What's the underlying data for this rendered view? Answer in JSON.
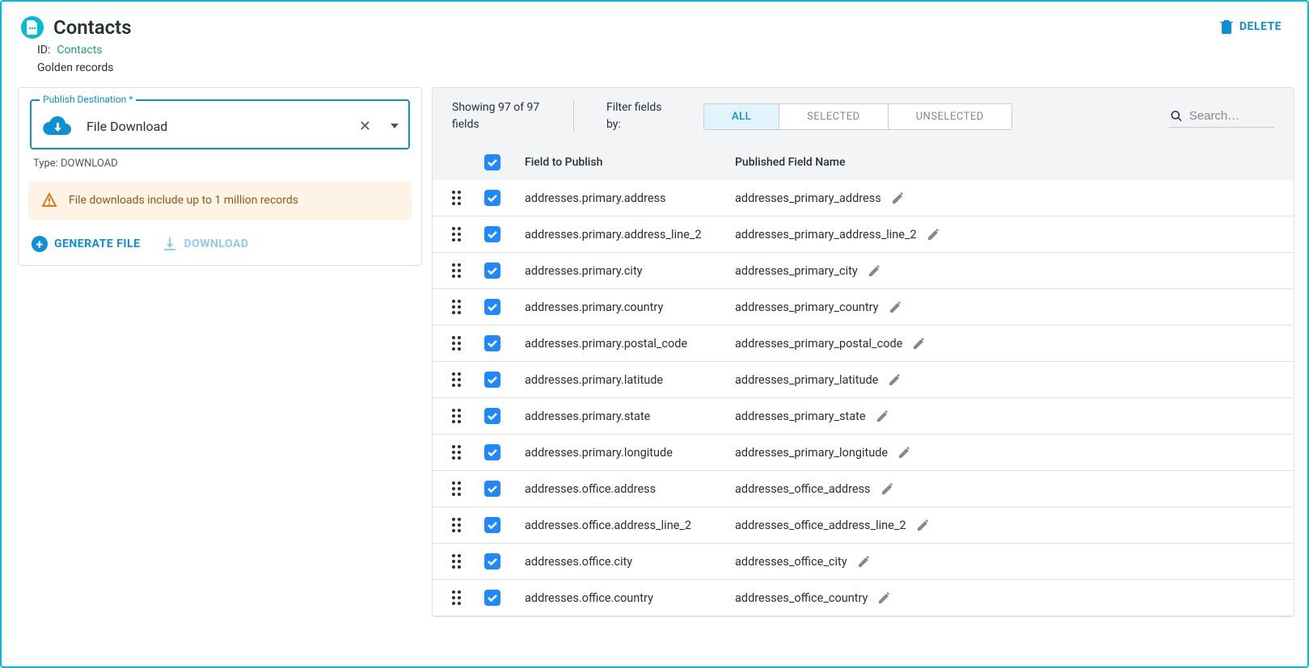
{
  "header": {
    "title": "Contacts",
    "id_label": "ID:",
    "id_value": "Contacts",
    "subtitle": "Golden records",
    "delete_label": "DELETE"
  },
  "publish": {
    "dest_label": "Publish Destination *",
    "dest_value": "File Download",
    "type_label": "Type: DOWNLOAD",
    "warning_text": "File downloads include up to 1 million records",
    "generate_label": "GENERATE FILE",
    "download_label": "DOWNLOAD"
  },
  "fields": {
    "showing_text": "Showing 97 of 97 fields",
    "filter_label": "Filter fields by:",
    "tabs": {
      "all": "ALL",
      "selected": "SELECTED",
      "unselected": "UNSELECTED"
    },
    "search_placeholder": "Search…",
    "col_field": "Field to Publish",
    "col_published": "Published Field Name",
    "rows": [
      {
        "field": "addresses.primary.address",
        "published": "addresses_primary_address",
        "checked": true
      },
      {
        "field": "addresses.primary.address_line_2",
        "published": "addresses_primary_address_line_2",
        "checked": true
      },
      {
        "field": "addresses.primary.city",
        "published": "addresses_primary_city",
        "checked": true
      },
      {
        "field": "addresses.primary.country",
        "published": "addresses_primary_country",
        "checked": true
      },
      {
        "field": "addresses.primary.postal_code",
        "published": "addresses_primary_postal_code",
        "checked": true
      },
      {
        "field": "addresses.primary.latitude",
        "published": "addresses_primary_latitude",
        "checked": true
      },
      {
        "field": "addresses.primary.state",
        "published": "addresses_primary_state",
        "checked": true
      },
      {
        "field": "addresses.primary.longitude",
        "published": "addresses_primary_longitude",
        "checked": true
      },
      {
        "field": "addresses.office.address",
        "published": "addresses_office_address",
        "checked": true
      },
      {
        "field": "addresses.office.address_line_2",
        "published": "addresses_office_address_line_2",
        "checked": true
      },
      {
        "field": "addresses.office.city",
        "published": "addresses_office_city",
        "checked": true
      },
      {
        "field": "addresses.office.country",
        "published": "addresses_office_country",
        "checked": true
      }
    ]
  }
}
